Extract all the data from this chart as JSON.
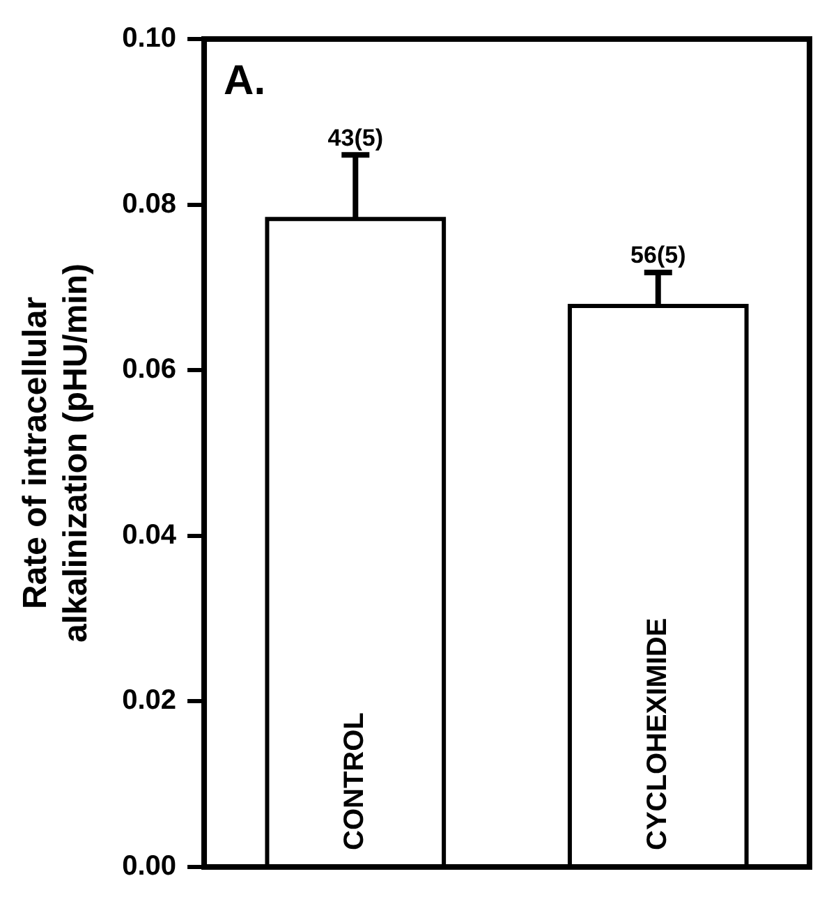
{
  "chart_data": {
    "type": "bar",
    "ylabel": "Rate of intracellular\nalkalinization (pHU/min)",
    "categories": [
      "CONTROL",
      "CYCLOHEXIMIDE"
    ],
    "values": [
      0.078,
      0.0675
    ],
    "errors": [
      0.008,
      0.0043
    ],
    "color": "#ffffff",
    "ylim": [
      0,
      0.1
    ],
    "yticks": [
      {
        "value": 0,
        "label": "0.00"
      },
      {
        "value": 0.02,
        "label": "0.02"
      },
      {
        "value": 0.04,
        "label": "0.04"
      },
      {
        "value": 0.06,
        "label": "0.06"
      },
      {
        "value": 0.08,
        "label": "0.08"
      },
      {
        "value": 0.1,
        "label": "0.10"
      }
    ],
    "grid": false,
    "legend": false,
    "annotations": [
      "A.",
      {
        "text": "43(5)",
        "x": "CONTROL",
        "y": 0.086
      },
      {
        "text": "56(5)",
        "x": "CYCLOHEXIMIDE",
        "y": 0.0718
      }
    ]
  }
}
